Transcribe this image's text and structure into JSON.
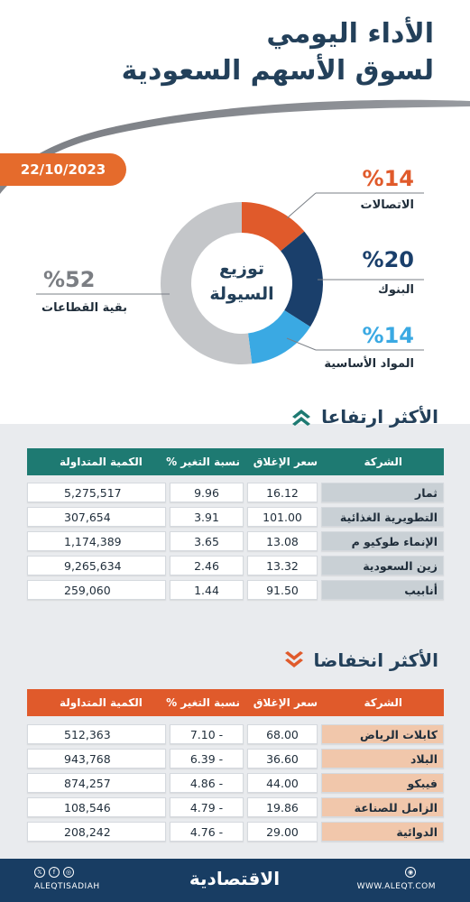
{
  "header": {
    "title_line1": "الأداء اليومي",
    "title_line2": "لسوق الأسهم السعودية",
    "date": "22/10/2023"
  },
  "chart_data": {
    "type": "pie",
    "title": "توزيع السيولة",
    "title_line1": "توزيع",
    "title_line2": "السيولة",
    "slices": [
      {
        "label": "الاتصالات",
        "value": 14,
        "display": "%14",
        "color": "#e05a2b"
      },
      {
        "label": "البنوك",
        "value": 20,
        "display": "%20",
        "color": "#1a3f6b"
      },
      {
        "label": "المواد الأساسية",
        "value": 14,
        "display": "%14",
        "color": "#3aa9e3"
      },
      {
        "label": "بقية القطاعات",
        "value": 52,
        "display": "%52",
        "color": "#c4c6c9"
      }
    ]
  },
  "gainers": {
    "title": "الأكثر ارتفاعا",
    "headers": {
      "name": "الشركة",
      "close": "سعر الإغلاق",
      "change": "نسبة التغير %",
      "volume": "الكمية المتداولة"
    },
    "rows": [
      {
        "name": "ثمار",
        "close": "16.12",
        "change": "9.96",
        "volume": "5,275,517"
      },
      {
        "name": "التطويرية الغذائية",
        "close": "101.00",
        "change": "3.91",
        "volume": "307,654"
      },
      {
        "name": "الإنماء طوكيو م",
        "close": "13.08",
        "change": "3.65",
        "volume": "1,174,389"
      },
      {
        "name": "زين السعودية",
        "close": "13.32",
        "change": "2.46",
        "volume": "9,265,634"
      },
      {
        "name": "أنابيب",
        "close": "91.50",
        "change": "1.44",
        "volume": "259,060"
      }
    ],
    "color": "#1e7a72"
  },
  "losers": {
    "title": "الأكثر انخفاضا",
    "headers": {
      "name": "الشركة",
      "close": "سعر الإغلاق",
      "change": "نسبة التغير %",
      "volume": "الكمية المتداولة"
    },
    "rows": [
      {
        "name": "كابلات الرياض",
        "close": "68.00",
        "change": "7.10 -",
        "volume": "512,363"
      },
      {
        "name": "البلاد",
        "close": "36.60",
        "change": "6.39 -",
        "volume": "943,768"
      },
      {
        "name": "فيبكو",
        "close": "44.00",
        "change": "4.86 -",
        "volume": "874,257"
      },
      {
        "name": "الزامل للصناعة",
        "close": "19.86",
        "change": "4.79 -",
        "volume": "108,546"
      },
      {
        "name": "الدوائية",
        "close": "29.00",
        "change": "4.76 -",
        "volume": "208,242"
      }
    ],
    "color": "#e05a2b"
  },
  "footer": {
    "handle": "ALEQTISADIAH",
    "logo": "الاقتصادية",
    "url": "WWW.ALEQT.COM"
  }
}
